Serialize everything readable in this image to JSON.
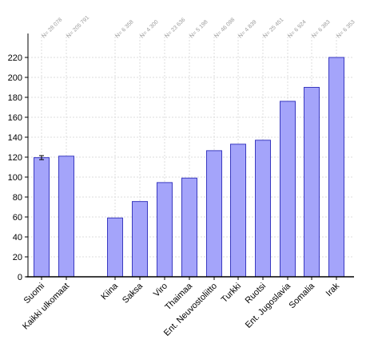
{
  "chart_data": {
    "type": "bar",
    "title": "",
    "xlabel": "",
    "ylabel": "",
    "ylim": [
      0,
      230
    ],
    "yticks": [
      0,
      20,
      40,
      60,
      80,
      100,
      120,
      140,
      160,
      180,
      200,
      220
    ],
    "grid": true,
    "bar_color": "#a4a4fa",
    "bar_edge_color": "#3a3ac0",
    "categories": [
      "Suomi",
      "Kaikki ulkomaat",
      "Kiina",
      "Saksa",
      "Viro",
      "Thaimaa",
      "Ent. Neuvostoliitto",
      "Turkki",
      "Ruotsi",
      "Ent. Jugoslavia",
      "Somalia",
      "Irak"
    ],
    "values": [
      119.5,
      121,
      59,
      75.5,
      94.5,
      99,
      126.5,
      133,
      137,
      176,
      190,
      220
    ],
    "error_bars": [
      2,
      null,
      null,
      null,
      null,
      null,
      null,
      null,
      null,
      null,
      null,
      null
    ],
    "n_labels": [
      "N= 28 078",
      "N= 205 791",
      "N= 6 358",
      "N= 4 300",
      "N= 23 636",
      "N= 5 198",
      "N= 46 098",
      "N= 4 839",
      "N= 25 451",
      "N= 6 924",
      "N= 6 383",
      "N= 6 353"
    ]
  }
}
